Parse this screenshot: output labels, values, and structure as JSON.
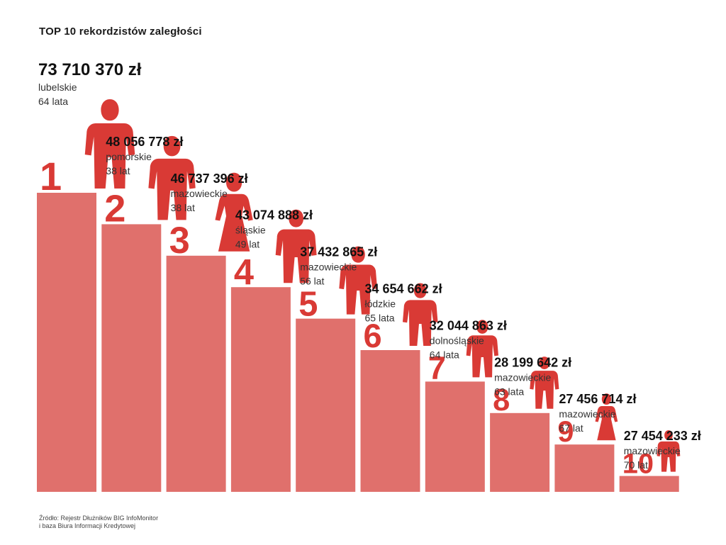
{
  "title": "TOP 10 rekordzistów zaległości",
  "source": {
    "line1": "Źródło: Rejestr Dłużników BIG InfoMonitor",
    "line2": "i baza Biura Informacji Kredytowej"
  },
  "colors": {
    "bar": "#e0706c",
    "figure": "#d93a35",
    "text": "#111111"
  },
  "chart_data": {
    "type": "bar",
    "title": "TOP 10 rekordzistów zaległości",
    "unit": "zł",
    "categories": [
      "1",
      "2",
      "3",
      "4",
      "5",
      "6",
      "7",
      "8",
      "9",
      "10"
    ],
    "values": [
      73710370,
      48056778,
      46737396,
      43074888,
      37432865,
      34654662,
      32044863,
      28199642,
      27456714,
      27454233
    ],
    "labels": [
      "73 710 370 zł",
      "48 056 778 zł",
      "46 737 396 zł",
      "43 074 888 zł",
      "37 432 865 zł",
      "34 654 662 zł",
      "32 044 863 zł",
      "28 199 642 zł",
      "27 456 714 zł",
      "27 454 233 zł"
    ],
    "regions": [
      "lubelskie",
      "pomorskie",
      "mazowieckie",
      "śląskie",
      "mazowieckie",
      "łódzkie",
      "dolnośląskie",
      "mazowieckie",
      "mazowieckie",
      "mazowieckie"
    ],
    "ages": [
      "64 lata",
      "38 lat",
      "38 lat",
      "49 lat",
      "56 lat",
      "65 lata",
      "64 lata",
      "63 lata",
      "67 lat",
      "70 lat"
    ],
    "genders": [
      "male",
      "male",
      "female",
      "male",
      "male",
      "male",
      "male",
      "male",
      "female",
      "male"
    ]
  }
}
